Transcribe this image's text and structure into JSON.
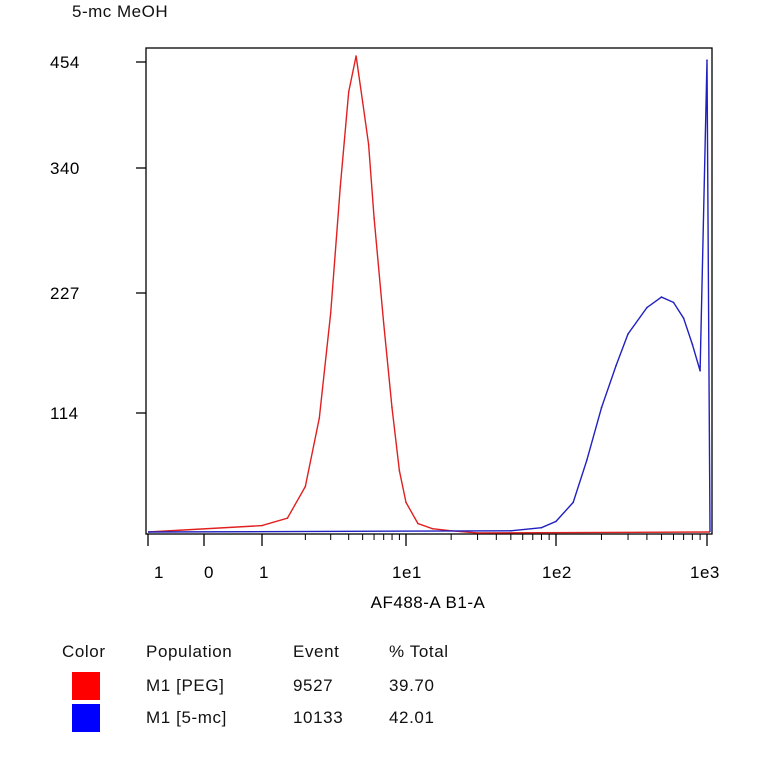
{
  "title": "5-mc MeOH",
  "chart_data": {
    "type": "area",
    "xlabel": "AF488-A B1-A",
    "ylabel": "",
    "x_scale": "biexponential",
    "x_ticks": [
      "1",
      "0",
      "1",
      "1e1",
      "1e2",
      "1e3"
    ],
    "y_ticks": [
      "454",
      "340",
      "227",
      "114"
    ],
    "ylim": [
      0,
      454
    ],
    "grid": false,
    "series": [
      {
        "name": "M1 [PEG]",
        "color": "#e02020",
        "x": [
          "1",
          "1.5",
          "2",
          "2.5",
          "3",
          "3.5",
          "4",
          "4.5",
          "5",
          "5.5",
          "6",
          "7",
          "8",
          "9",
          "10",
          "12",
          "15",
          "20",
          "30"
        ],
        "y": [
          8,
          15,
          45,
          110,
          210,
          330,
          420,
          454,
          410,
          370,
          300,
          200,
          120,
          60,
          30,
          10,
          5,
          3,
          1
        ]
      },
      {
        "name": "M1 [5-mc]",
        "color": "#2020c0",
        "x": [
          "50",
          "80",
          "100",
          "130",
          "160",
          "200",
          "250",
          "300",
          "400",
          "500",
          "600",
          "700",
          "800",
          "900",
          "1000"
        ],
        "y": [
          3,
          6,
          12,
          30,
          70,
          120,
          160,
          190,
          215,
          225,
          220,
          205,
          180,
          155,
          450
        ]
      }
    ]
  },
  "legend": {
    "headers": [
      "Color",
      "Population",
      "Event",
      "% Total"
    ],
    "rows": [
      {
        "color": "#ff0000",
        "population": "M1 [PEG]",
        "event": "9527",
        "total": "39.70"
      },
      {
        "color": "#0000ff",
        "population": "M1 [5-mc]",
        "event": "10133",
        "total": "42.01"
      }
    ]
  }
}
